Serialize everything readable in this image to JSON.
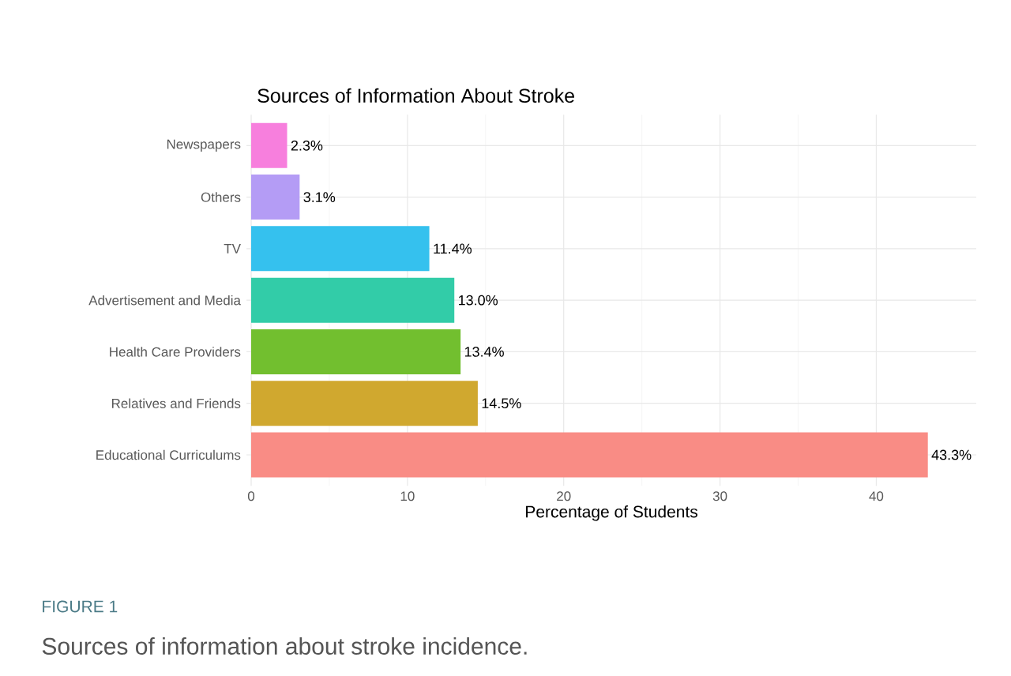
{
  "chart_data": {
    "type": "bar",
    "orientation": "horizontal",
    "title": "Sources of Information About Stroke",
    "xlabel": "Percentage of Students",
    "categories": [
      "Newspapers",
      "Others",
      "TV",
      "Advertisement and Media",
      "Health Care Providers",
      "Relatives and Friends",
      "Educational Curriculums"
    ],
    "values": [
      2.3,
      3.1,
      11.4,
      13.0,
      13.4,
      14.5,
      43.3
    ],
    "colors": [
      "#f77fdd",
      "#b49cf5",
      "#35c1ee",
      "#32cca8",
      "#72bf2f",
      "#d0a82f",
      "#f98c85"
    ],
    "value_labels": [
      "2.3%",
      "3.1%",
      "11.4%",
      "13.0%",
      "13.4%",
      "14.5%",
      "43.3%"
    ],
    "xlim": [
      -0.3,
      46.4
    ],
    "xticks": [
      0,
      10,
      20,
      30,
      40
    ],
    "grid": true,
    "annotations": [
      "FIGURE 1",
      "Sources of information about stroke incidence."
    ]
  }
}
